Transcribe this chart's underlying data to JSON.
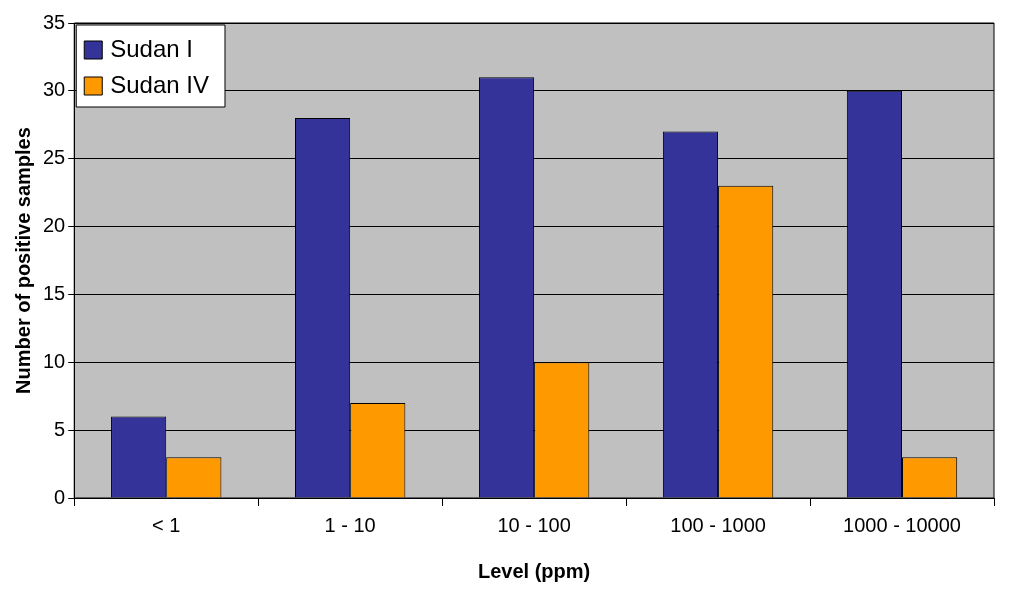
{
  "chart_data": {
    "type": "bar",
    "xlabel": "Level (ppm)",
    "ylabel": "Number of positive samples",
    "categories": [
      "< 1",
      "1 - 10",
      "10 - 100",
      "100 - 1000",
      "1000 - 10000"
    ],
    "series": [
      {
        "name": "Sudan I",
        "color": "#333399",
        "values": [
          6,
          28,
          31,
          27,
          30
        ]
      },
      {
        "name": "Sudan IV",
        "color": "#ff9900",
        "values": [
          3,
          7,
          10,
          23,
          3
        ]
      }
    ],
    "ylim": [
      0,
      35
    ],
    "yticks": [
      0,
      5,
      10,
      15,
      20,
      25,
      30,
      35
    ],
    "grid": "y",
    "legend": "top left"
  }
}
